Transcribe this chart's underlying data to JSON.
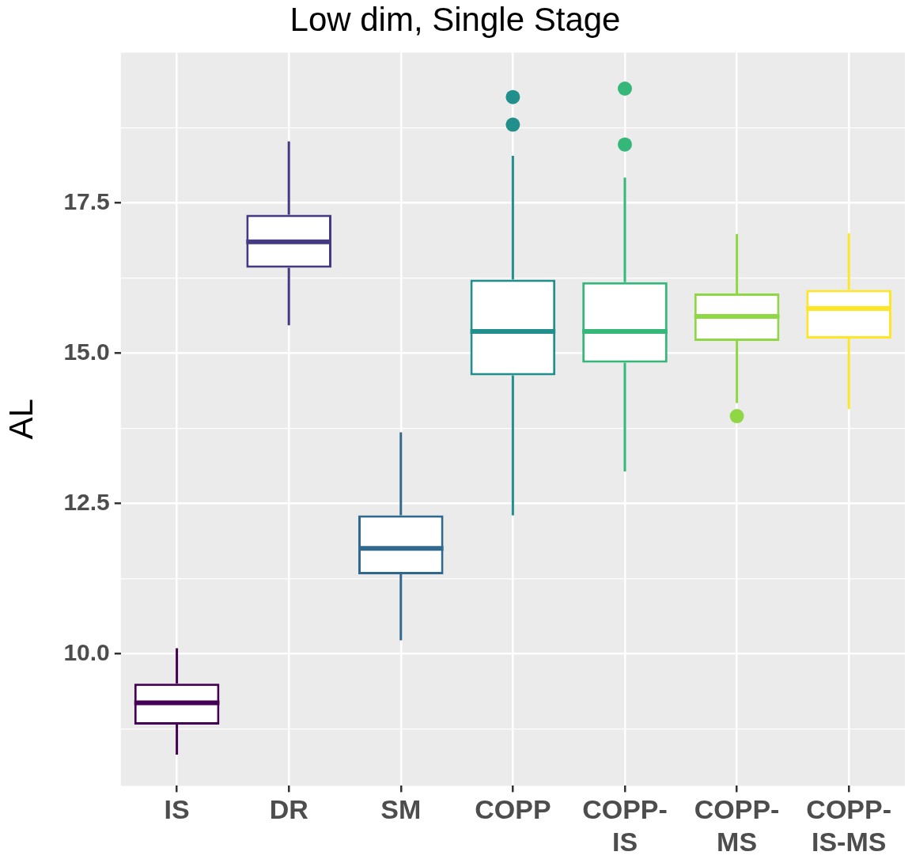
{
  "chart_data": {
    "type": "box",
    "title": "Low dim, Single Stage",
    "ylabel": "AL",
    "categories": [
      "IS",
      "DR",
      "SM",
      "COPP",
      "COPP-IS",
      "COPP-MS",
      "COPP-IS-MS"
    ],
    "colors": [
      "#440154",
      "#443983",
      "#31688e",
      "#21908d",
      "#35b779",
      "#8fd744",
      "#fde725"
    ],
    "boxes": [
      {
        "low": 8.32,
        "q1": 8.82,
        "median": 9.18,
        "q3": 9.5,
        "high": 10.09
      },
      {
        "low": 15.46,
        "q1": 16.42,
        "median": 16.85,
        "q3": 17.3,
        "high": 18.52
      },
      {
        "low": 10.22,
        "q1": 11.32,
        "median": 11.75,
        "q3": 12.3,
        "high": 13.68
      },
      {
        "low": 12.3,
        "q1": 14.63,
        "median": 15.36,
        "q3": 16.22,
        "high": 18.28,
        "outliers": [
          19.26,
          18.8
        ]
      },
      {
        "low": 13.03,
        "q1": 14.84,
        "median": 15.36,
        "q3": 16.18,
        "high": 17.92,
        "outliers": [
          19.4,
          18.47
        ]
      },
      {
        "low": 14.17,
        "q1": 15.2,
        "median": 15.61,
        "q3": 15.99,
        "high": 16.98,
        "outliers": [
          13.95
        ]
      },
      {
        "low": 14.07,
        "q1": 15.24,
        "median": 15.74,
        "q3": 16.05,
        "high": 16.99
      }
    ],
    "ylim": [
      7.8,
      20.0
    ],
    "yticks": [
      {
        "value": 8.75,
        "label": null
      },
      {
        "value": 10,
        "label": "10.0"
      },
      {
        "value": 11.25,
        "label": null
      },
      12.5,
      {
        "value": 13.75,
        "label": null
      },
      {
        "value": 15,
        "label": "15.0"
      },
      {
        "value": 16.25,
        "label": null
      },
      17.5,
      {
        "value": 18.75,
        "label": null
      }
    ],
    "grid": true
  }
}
